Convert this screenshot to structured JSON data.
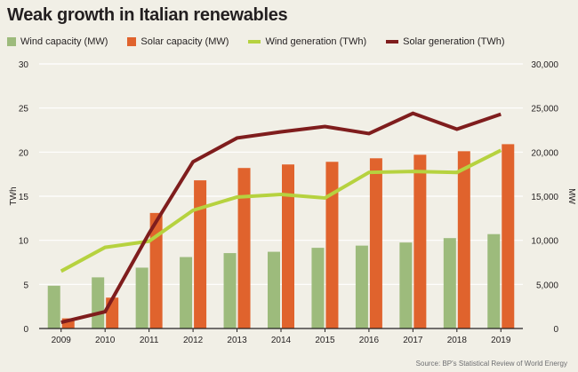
{
  "title": "Weak growth in Italian renewables",
  "source": "Source: BP's Statistical Review of World Energy",
  "colors": {
    "wind_capacity": "#9dbb7c",
    "solar_capacity": "#e0632d",
    "wind_generation": "#b6d23f",
    "solar_generation": "#7f1d1d",
    "grid": "#ffffff"
  },
  "chart_data": {
    "type": "bar",
    "categories": [
      "2009",
      "2010",
      "2011",
      "2012",
      "2013",
      "2014",
      "2015",
      "2016",
      "2017",
      "2018",
      "2019"
    ],
    "series": [
      {
        "name": "Wind capacity (MW)",
        "kind": "bar",
        "axis": "right",
        "values": [
          4850,
          5800,
          6900,
          8100,
          8550,
          8700,
          9150,
          9400,
          9750,
          10250,
          10700
        ]
      },
      {
        "name": "Solar capacity (MW)",
        "kind": "bar",
        "axis": "right",
        "values": [
          1150,
          3500,
          13100,
          16800,
          18200,
          18600,
          18900,
          19300,
          19700,
          20100,
          20900
        ]
      },
      {
        "name": "Wind generation (TWh)",
        "kind": "line",
        "axis": "left",
        "values": [
          6.5,
          9.2,
          9.9,
          13.4,
          14.9,
          15.2,
          14.8,
          17.7,
          17.8,
          17.7,
          20.2
        ]
      },
      {
        "name": "Solar generation (TWh)",
        "kind": "line",
        "axis": "left",
        "values": [
          0.7,
          1.9,
          10.8,
          18.9,
          21.6,
          22.3,
          22.9,
          22.1,
          24.4,
          22.6,
          24.3
        ]
      }
    ],
    "left_axis": {
      "label": "TWh",
      "min": 0,
      "max": 30,
      "ticks": [
        "0",
        "5",
        "10",
        "15",
        "20",
        "25",
        "30"
      ]
    },
    "right_axis": {
      "label": "MW",
      "min": 0,
      "max": 30000,
      "ticks": [
        "0",
        "5,000",
        "10,000",
        "15,000",
        "20,000",
        "25,000",
        "30,000"
      ]
    },
    "grid": true,
    "legend": "top"
  }
}
